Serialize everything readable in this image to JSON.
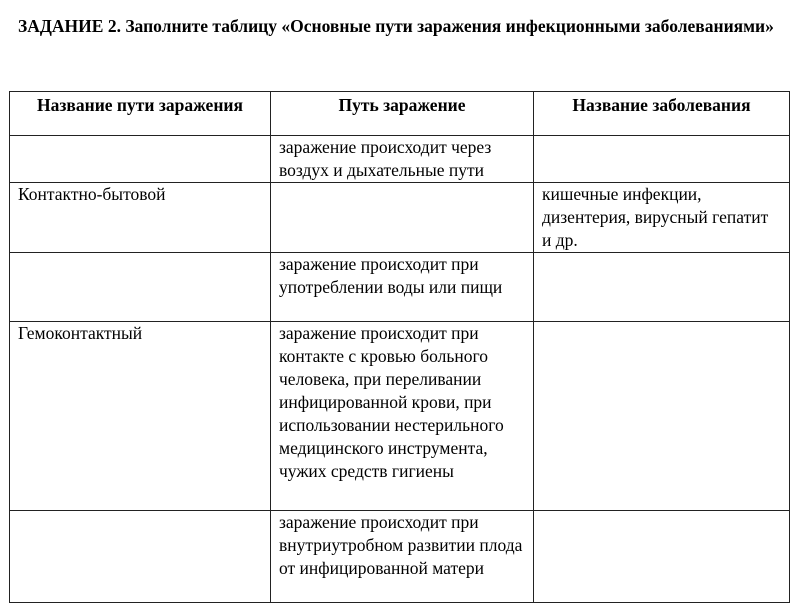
{
  "title": "ЗАДАНИЕ 2. Заполните таблицу «Основные пути заражения инфекционными заболеваниями»",
  "table": {
    "headers": [
      "Название пути заражения",
      "Путь заражение",
      "Название заболевания"
    ],
    "rows": [
      [
        "",
        "заражение происходит через воздух и дыхательные пути",
        ""
      ],
      [
        "Контактно-бытовой",
        "",
        "кишечные инфекции, дизентерия, вирусный гепатит и др."
      ],
      [
        "",
        "заражение происходит при употреблении воды или пищи",
        ""
      ],
      [
        "Гемоконтактный",
        "заражение происходит при контакте с кровью больного человека, при переливании инфицированной крови, при использовании нестерильного медицинского инструмента, чужих средств гигиены",
        ""
      ],
      [
        "",
        "заражение происходит при внутриутробном развитии плода от инфицированной матери",
        ""
      ]
    ]
  }
}
